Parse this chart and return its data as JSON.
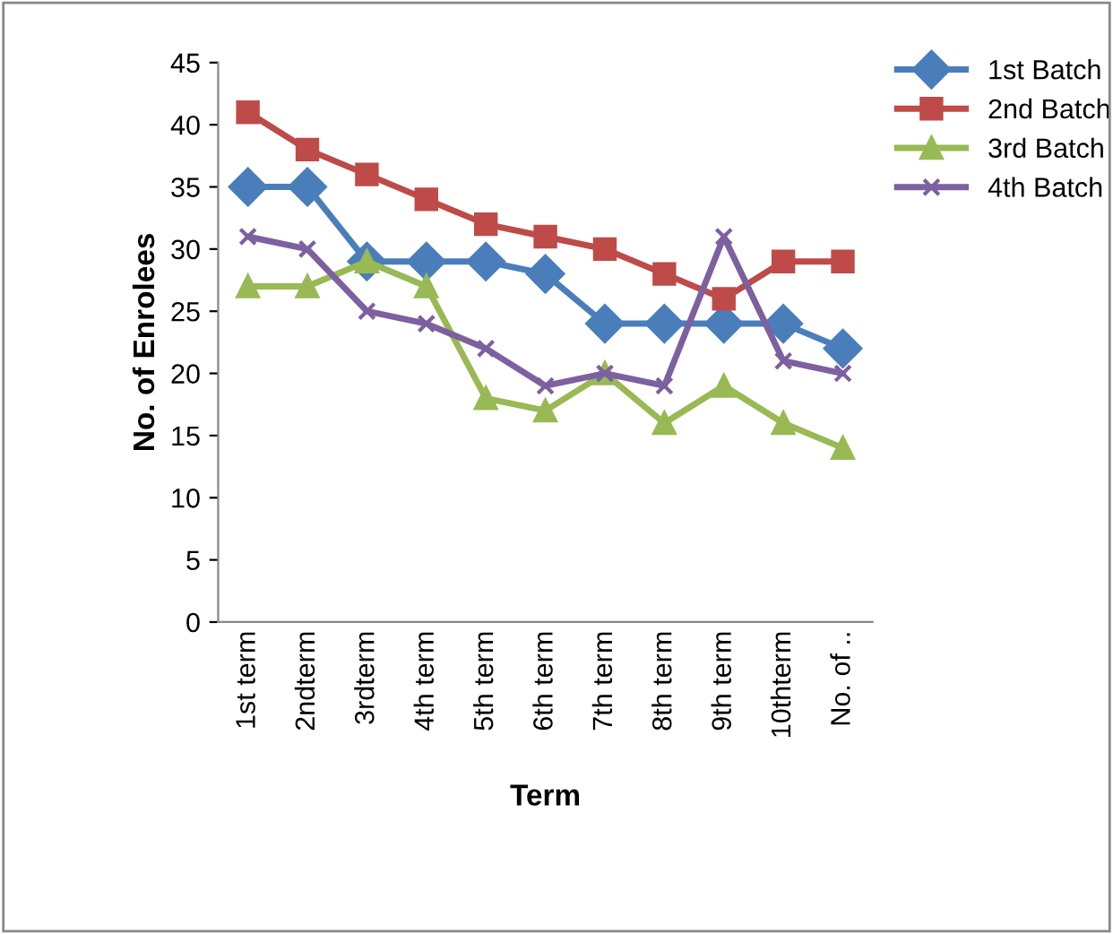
{
  "chart_data": {
    "type": "line",
    "xlabel": "Term",
    "ylabel": "No. of Enrolees",
    "categories": [
      "1st term",
      "2ndterm",
      "3rdterm",
      "4th term",
      "5th term",
      "6th term",
      "7th term",
      "8th term",
      "9th term",
      "10thterm",
      "No. of .."
    ],
    "series": [
      {
        "name": "1st Batch",
        "color": "#4a7ebb",
        "marker": "diamond",
        "values": [
          35,
          35,
          29,
          29,
          29,
          28,
          24,
          24,
          24,
          24,
          22
        ]
      },
      {
        "name": "2nd Batch",
        "color": "#be4b48",
        "marker": "square",
        "values": [
          41,
          38,
          36,
          34,
          32,
          31,
          30,
          28,
          26,
          29,
          29
        ]
      },
      {
        "name": "3rd Batch",
        "color": "#98b954",
        "marker": "triangle",
        "values": [
          27,
          27,
          29,
          27,
          18,
          17,
          20,
          16,
          19,
          16,
          14
        ]
      },
      {
        "name": "4th Batch",
        "color": "#7d60a0",
        "marker": "cross",
        "values": [
          31,
          30,
          25,
          24,
          22,
          19,
          20,
          19,
          31,
          21,
          20
        ]
      }
    ],
    "ylim": [
      0,
      45
    ],
    "yticks": [
      0,
      5,
      10,
      15,
      20,
      25,
      30,
      35,
      40,
      45
    ],
    "grid": false,
    "legend": "top right",
    "line_style": "solid"
  }
}
